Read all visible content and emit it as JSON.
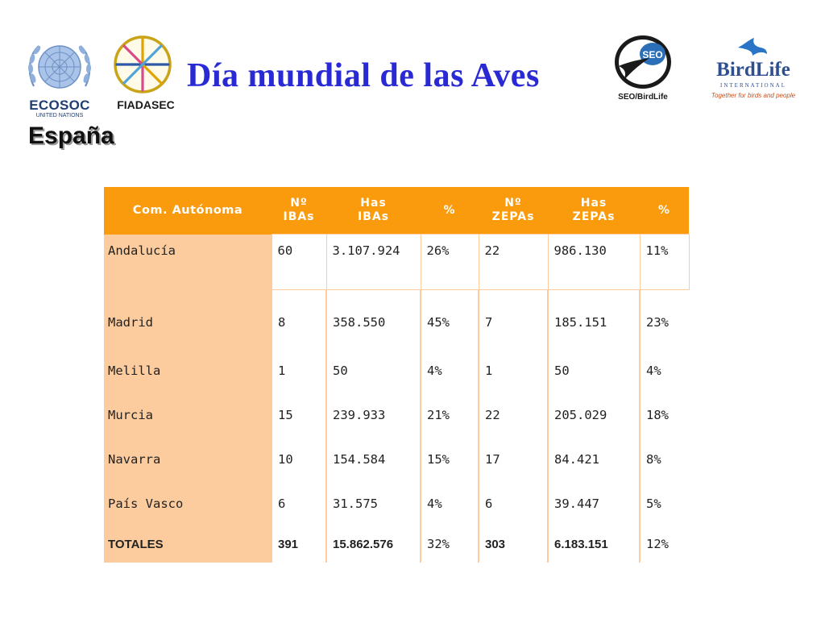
{
  "header": {
    "title": "Día mundial de las Aves",
    "subtitle": "España",
    "logos": {
      "ecosoc": {
        "name": "ECOSOC",
        "sub": "UNITED NATIONS",
        "icon": "un-emblem-icon",
        "color": "#1f3f73"
      },
      "fiadasec": {
        "name": "FIADASEC",
        "icon": "fiadasec-wheel-icon"
      },
      "seo": {
        "name": "SEO/BirdLife",
        "badge": "SEO",
        "icon": "seo-bird-icon"
      },
      "birdlife": {
        "name": "BirdLife",
        "intl": "INTERNATIONAL",
        "tagline": "Together for birds and people",
        "icon": "birdlife-bird-icon"
      }
    }
  },
  "table": {
    "header_color": "#f99b0c",
    "region_color": "#fccc9f",
    "columns": [
      {
        "l1": "Com. Autónoma",
        "l2": ""
      },
      {
        "l1": "Nº",
        "l2": "IBAs"
      },
      {
        "l1": "Has",
        "l2": "IBAs"
      },
      {
        "l1": "%",
        "l2": ""
      },
      {
        "l1": "Nº",
        "l2": "ZEPAs"
      },
      {
        "l1": "Has",
        "l2": "ZEPAs"
      },
      {
        "l1": "%",
        "l2": ""
      }
    ],
    "rows": [
      {
        "region": "Andalucía",
        "n_ibas": "60",
        "has_ibas": "3.107.924",
        "pct_ibas": "26%",
        "n_zepas": "22",
        "has_zepas": "986.130",
        "pct_zepas": "11%"
      },
      {
        "region": "Madrid",
        "n_ibas": "8",
        "has_ibas": "358.550",
        "pct_ibas": "45%",
        "n_zepas": "7",
        "has_zepas": "185.151",
        "pct_zepas": "23%"
      },
      {
        "region": "Melilla",
        "n_ibas": "1",
        "has_ibas": "50",
        "pct_ibas": "4%",
        "n_zepas": "1",
        "has_zepas": "50",
        "pct_zepas": "4%"
      },
      {
        "region": "Murcia",
        "n_ibas": "15",
        "has_ibas": "239.933",
        "pct_ibas": "21%",
        "n_zepas": "22",
        "has_zepas": "205.029",
        "pct_zepas": "18%"
      },
      {
        "region": "Navarra",
        "n_ibas": "10",
        "has_ibas": "154.584",
        "pct_ibas": "15%",
        "n_zepas": "17",
        "has_zepas": "84.421",
        "pct_zepas": "8%"
      },
      {
        "region": "País Vasco",
        "n_ibas": "6",
        "has_ibas": "31.575",
        "pct_ibas": "4%",
        "n_zepas": "6",
        "has_zepas": "39.447",
        "pct_zepas": "5%"
      }
    ],
    "totals": {
      "region": "TOTALES",
      "n_ibas": "391",
      "has_ibas": "15.862.576",
      "pct_ibas": "32%",
      "n_zepas": "303",
      "has_zepas": "6.183.151",
      "pct_zepas": "12%"
    }
  }
}
